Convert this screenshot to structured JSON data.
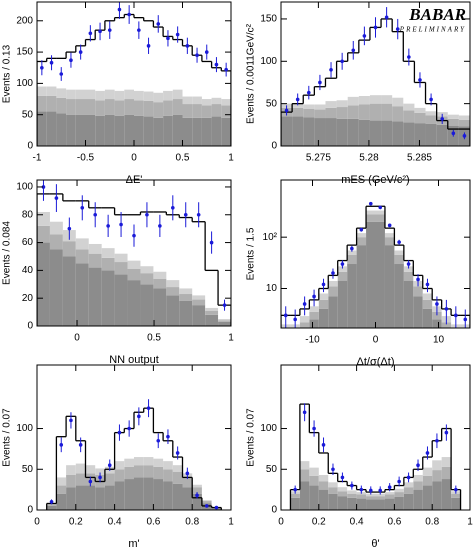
{
  "annotation": {
    "title": "BABAR",
    "subtitle": "PRELIMINARY"
  },
  "chart_data": [
    {
      "type": "histogram",
      "x_label": "ΔE'",
      "y_label": "Events / 0.13",
      "bins": [
        -1,
        -0.9,
        -0.8,
        -0.7,
        -0.6,
        -0.5,
        -0.4,
        -0.3,
        -0.2,
        -0.1,
        0,
        0.1,
        0.2,
        0.3,
        0.4,
        0.5,
        0.6,
        0.7,
        0.8,
        0.9,
        1
      ],
      "xlim": [
        -1,
        1
      ],
      "xticks": [
        -1,
        -0.5,
        0,
        0.5,
        1
      ],
      "ylim": [
        0,
        230
      ],
      "yticks": [
        0,
        50,
        100,
        150,
        200
      ],
      "stack": [
        {
          "color": "#8c8c8c",
          "values": [
            55,
            55,
            52,
            50,
            50,
            50,
            48,
            50,
            48,
            50,
            48,
            47,
            45,
            48,
            50,
            45,
            45,
            45,
            47,
            45
          ]
        },
        {
          "color": "#b0b0b0",
          "values": [
            25,
            25,
            25,
            25,
            25,
            25,
            25,
            25,
            25,
            25,
            25,
            25,
            25,
            25,
            25,
            22,
            22,
            20,
            20,
            20
          ]
        },
        {
          "color": "#d2d2d2",
          "values": [
            15,
            15,
            15,
            15,
            15,
            15,
            15,
            15,
            15,
            15,
            15,
            15,
            15,
            15,
            15,
            12,
            12,
            10,
            10,
            10
          ]
        }
      ],
      "total": {
        "color": "#000000",
        "values": [
          135,
          140,
          140,
          150,
          160,
          170,
          185,
          200,
          205,
          210,
          205,
          200,
          190,
          175,
          170,
          160,
          145,
          135,
          125,
          120
        ]
      },
      "data": {
        "color": "#1a1ad8",
        "values": [
          125,
          133,
          115,
          137,
          150,
          180,
          183,
          185,
          218,
          210,
          185,
          160,
          195,
          172,
          178,
          160,
          145,
          150,
          130,
          122
        ],
        "errors": [
          12,
          12,
          11,
          12,
          12,
          13,
          14,
          14,
          15,
          15,
          14,
          13,
          14,
          13,
          13,
          13,
          12,
          12,
          12,
          11
        ]
      }
    },
    {
      "type": "histogram",
      "x_label": "mES (GeV/c²)",
      "y_label": "Events / 0.0011GeV/c²",
      "bins": [
        5.2713,
        5.2724,
        5.2735,
        5.2746,
        5.2757,
        5.2768,
        5.2779,
        5.279,
        5.2801,
        5.2812,
        5.2823,
        5.2834,
        5.2845,
        5.2856,
        5.2867,
        5.2878,
        5.2889,
        5.29
      ],
      "xlim": [
        5.2713,
        5.29
      ],
      "xticks": [
        5.275,
        5.28,
        5.285
      ],
      "ylim": [
        0,
        170
      ],
      "yticks": [
        0,
        50,
        100,
        150
      ],
      "stack": [
        {
          "color": "#8c8c8c",
          "values": [
            35,
            35,
            34,
            33,
            33,
            32,
            32,
            31,
            30,
            30,
            29,
            28,
            27,
            26,
            25,
            24,
            23
          ]
        },
        {
          "color": "#b0b0b0",
          "values": [
            10,
            10,
            10,
            10,
            12,
            14,
            16,
            18,
            20,
            20,
            18,
            14,
            12,
            10,
            10,
            8,
            8
          ]
        },
        {
          "color": "#d2d2d2",
          "values": [
            5,
            5,
            5,
            6,
            8,
            8,
            10,
            10,
            10,
            10,
            10,
            8,
            6,
            5,
            5,
            5,
            5
          ]
        }
      ],
      "total": {
        "color": "#000000",
        "values": [
          40,
          50,
          60,
          70,
          80,
          100,
          110,
          125,
          140,
          150,
          135,
          100,
          75,
          50,
          30,
          20,
          20
        ]
      },
      "data": {
        "color": "#1a1ad8",
        "values": [
          42,
          55,
          63,
          75,
          90,
          100,
          113,
          130,
          140,
          152,
          138,
          105,
          78,
          55,
          32,
          15,
          12
        ],
        "errors": [
          6,
          7,
          8,
          9,
          9,
          10,
          11,
          11,
          12,
          12,
          12,
          10,
          9,
          7,
          6,
          4,
          4
        ]
      }
    },
    {
      "type": "histogram",
      "x_label": "NN output",
      "y_label": "Events / 0.084",
      "bins": [
        -0.26,
        -0.176,
        -0.092,
        -0.008,
        0.076,
        0.16,
        0.244,
        0.328,
        0.412,
        0.496,
        0.58,
        0.664,
        0.748,
        0.832,
        0.916,
        1
      ],
      "xlim": [
        -0.26,
        1
      ],
      "xticks": [
        0,
        0.5,
        1
      ],
      "ylim": [
        0,
        105
      ],
      "yticks": [
        0,
        20,
        40,
        60,
        80,
        100
      ],
      "stack": [
        {
          "color": "#8c8c8c",
          "values": [
            60,
            55,
            50,
            45,
            42,
            40,
            37,
            33,
            30,
            27,
            22,
            18,
            15,
            8,
            3
          ]
        },
        {
          "color": "#b0b0b0",
          "values": [
            12,
            11,
            11,
            10,
            10,
            9,
            9,
            8,
            8,
            7,
            6,
            5,
            4,
            3,
            1
          ]
        },
        {
          "color": "#d2d2d2",
          "values": [
            10,
            9,
            8,
            8,
            7,
            7,
            6,
            6,
            5,
            5,
            5,
            4,
            3,
            2,
            1
          ]
        }
      ],
      "total": {
        "color": "#000000",
        "values": [
          95,
          95,
          90,
          90,
          85,
          85,
          80,
          80,
          82,
          82,
          80,
          78,
          75,
          40,
          15
        ]
      },
      "data": {
        "color": "#1a1ad8",
        "values": [
          100,
          92,
          70,
          85,
          80,
          72,
          73,
          65,
          80,
          72,
          85,
          80,
          80,
          60,
          15
        ],
        "errors": [
          10,
          10,
          8,
          9,
          9,
          8,
          9,
          8,
          9,
          8,
          9,
          9,
          9,
          8,
          4
        ]
      }
    },
    {
      "type": "histogram",
      "x_label": "Δt/σ(Δt)",
      "y_label": "Events / 1.5",
      "log_y": true,
      "bins": [
        -15,
        -13.5,
        -12,
        -10.5,
        -9,
        -7.5,
        -6,
        -4.5,
        -3,
        -1.5,
        0,
        1.5,
        3,
        4.5,
        6,
        7.5,
        9,
        10.5,
        12,
        13.5,
        15
      ],
      "xlim": [
        -15,
        15
      ],
      "xticks": [
        -10,
        0,
        10
      ],
      "ylim": [
        1.7,
        1300
      ],
      "yticks": [
        10,
        {
          "value": 100,
          "label": "10²"
        }
      ],
      "stack": [
        {
          "color": "#8c8c8c",
          "values": [
            1,
            1,
            1.5,
            2.5,
            4,
            7,
            14,
            30,
            70,
            200,
            200,
            70,
            30,
            14,
            7,
            4,
            2.5,
            1.5,
            1,
            1
          ]
        },
        {
          "color": "#b0b0b0",
          "values": [
            0.5,
            0.5,
            0.7,
            1,
            2,
            4,
            7,
            15,
            30,
            80,
            80,
            30,
            15,
            7,
            4,
            2,
            1,
            0.7,
            0.5,
            0.5
          ]
        },
        {
          "color": "#d2d2d2",
          "values": [
            0.5,
            0.5,
            0.7,
            1,
            2,
            3,
            6,
            10,
            20,
            50,
            50,
            20,
            10,
            6,
            3,
            2,
            1,
            0.7,
            0.5,
            0.5
          ]
        }
      ],
      "total": {
        "color": "#000000",
        "values": [
          3,
          3,
          4,
          6,
          10,
          18,
          35,
          70,
          150,
          400,
          400,
          150,
          70,
          35,
          18,
          10,
          6,
          4,
          3,
          3
        ]
      },
      "data": {
        "color": "#1a1ad8",
        "values": [
          3,
          2.5,
          5,
          7,
          12,
          20,
          30,
          60,
          140,
          450,
          380,
          170,
          80,
          30,
          15,
          12,
          5,
          4,
          3,
          2.5
        ],
        "errors": [
          1.5,
          1.4,
          2,
          2.5,
          3.5,
          4.5,
          5.5,
          8,
          12,
          21,
          19,
          13,
          9,
          5.5,
          4,
          3.5,
          2,
          2,
          1.5,
          1.4
        ]
      }
    },
    {
      "type": "histogram",
      "x_label": "m'",
      "y_label": "Events / 0.07",
      "bins": [
        0.05,
        0.1,
        0.15,
        0.2,
        0.25,
        0.3,
        0.35,
        0.4,
        0.45,
        0.5,
        0.55,
        0.6,
        0.65,
        0.7,
        0.75,
        0.8,
        0.85,
        0.9,
        0.95
      ],
      "xlim": [
        0,
        1
      ],
      "xticks": [
        0,
        0.2,
        0.4,
        0.6,
        0.8,
        1
      ],
      "ylim": [
        0,
        178
      ],
      "yticks": [
        0,
        50,
        100
      ],
      "stack": [
        {
          "color": "#8c8c8c",
          "values": [
            5,
            20,
            28,
            30,
            30,
            28,
            30,
            35,
            38,
            40,
            40,
            38,
            35,
            32,
            28,
            20,
            8,
            2
          ]
        },
        {
          "color": "#b0b0b0",
          "values": [
            2,
            10,
            15,
            15,
            15,
            15,
            15,
            15,
            15,
            15,
            15,
            15,
            15,
            15,
            12,
            8,
            3,
            1
          ]
        },
        {
          "color": "#d2d2d2",
          "values": [
            1,
            10,
            12,
            12,
            10,
            8,
            8,
            10,
            10,
            10,
            10,
            10,
            10,
            8,
            5,
            3,
            1,
            0
          ]
        }
      ],
      "total": {
        "color": "#000000",
        "values": [
          8,
          90,
          115,
          85,
          40,
          35,
          50,
          95,
          100,
          120,
          125,
          95,
          85,
          65,
          40,
          15,
          5,
          3
        ]
      },
      "data": {
        "color": "#1a1ad8",
        "values": [
          10,
          80,
          110,
          80,
          35,
          40,
          55,
          95,
          100,
          115,
          125,
          85,
          90,
          70,
          45,
          18,
          5,
          3
        ],
        "errors": [
          3,
          9,
          10,
          9,
          6,
          6,
          7,
          10,
          10,
          11,
          11,
          9,
          9,
          8,
          7,
          4,
          2,
          2
        ]
      }
    },
    {
      "type": "histogram",
      "x_label": "θ'",
      "y_label": "Events / 0.07",
      "bins": [
        0.05,
        0.1,
        0.15,
        0.2,
        0.25,
        0.3,
        0.35,
        0.4,
        0.45,
        0.5,
        0.55,
        0.6,
        0.65,
        0.7,
        0.75,
        0.8,
        0.85,
        0.9,
        0.95
      ],
      "xlim": [
        0,
        1
      ],
      "xticks": [
        0,
        0.2,
        0.4,
        0.6,
        0.8,
        1
      ],
      "ylim": [
        0,
        178
      ],
      "yticks": [
        0,
        50,
        100
      ],
      "stack": [
        {
          "color": "#8c8c8c",
          "values": [
            15,
            35,
            30,
            25,
            20,
            17,
            15,
            14,
            13,
            13,
            14,
            16,
            20,
            25,
            30,
            35,
            38,
            15
          ]
        },
        {
          "color": "#b0b0b0",
          "values": [
            5,
            15,
            12,
            10,
            8,
            6,
            5,
            5,
            4,
            4,
            5,
            6,
            8,
            10,
            12,
            14,
            15,
            5
          ]
        },
        {
          "color": "#d2d2d2",
          "values": [
            3,
            10,
            10,
            8,
            6,
            5,
            4,
            3,
            3,
            3,
            3,
            4,
            6,
            8,
            10,
            12,
            12,
            3
          ]
        }
      ],
      "total": {
        "color": "#000000",
        "values": [
          25,
          130,
          95,
          70,
          45,
          35,
          30,
          25,
          22,
          22,
          25,
          30,
          40,
          50,
          65,
          85,
          100,
          25
        ]
      },
      "data": {
        "color": "#1a1ad8",
        "values": [
          25,
          120,
          100,
          80,
          50,
          40,
          30,
          25,
          24,
          24,
          28,
          35,
          40,
          55,
          70,
          85,
          95,
          25
        ],
        "errors": [
          5,
          11,
          10,
          9,
          7,
          6,
          5,
          5,
          5,
          5,
          5,
          6,
          6,
          7,
          8,
          9,
          10,
          5
        ]
      }
    }
  ]
}
